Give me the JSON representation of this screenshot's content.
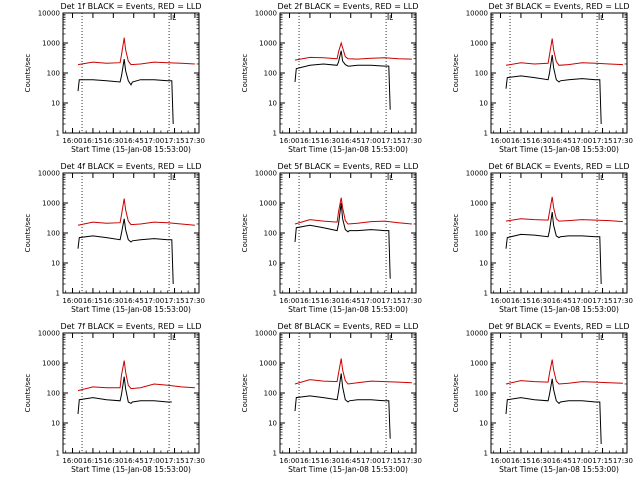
{
  "colors": {
    "events": "#000000",
    "lld": "#cc0000",
    "frame": "#000000"
  },
  "chart_data": [
    {
      "type": "line",
      "title": "Det 1f BLACK = Events, RED = LLD",
      "ylabel": "Counts/sec",
      "xlabel": "Start Time (15-Jan-08 15:53:00)",
      "x_ticks": [
        "16:00",
        "16:15",
        "16:30",
        "16:45",
        "17:00",
        "17:15",
        "17:30"
      ],
      "y_ticks": [
        "1",
        "10",
        "100",
        "1000",
        "10000"
      ],
      "y_scale": "log",
      "ylim": [
        1,
        10000
      ],
      "xlim": [
        "15:53",
        "17:33"
      ],
      "marker_label": "L",
      "dotted_lines_x": [
        "16:07",
        "17:11"
      ],
      "series": [
        {
          "name": "Events",
          "color": "#000000",
          "x": [
            "16:04",
            "16:05",
            "16:15",
            "16:25",
            "16:35",
            "16:36",
            "16:38",
            "16:39",
            "16:41",
            "16:43",
            "16:44",
            "16:50",
            "17:00",
            "17:10",
            "17:13",
            "17:14"
          ],
          "values": [
            25,
            60,
            60,
            55,
            50,
            80,
            290,
            120,
            55,
            40,
            50,
            60,
            60,
            55,
            55,
            2
          ]
        },
        {
          "name": "LLD",
          "color": "#cc0000",
          "x": [
            "16:04",
            "16:15",
            "16:25",
            "16:35",
            "16:36",
            "16:38",
            "16:39",
            "16:41",
            "16:43",
            "16:50",
            "17:00",
            "17:10",
            "17:20",
            "17:30"
          ],
          "values": [
            190,
            230,
            210,
            220,
            400,
            1500,
            600,
            250,
            190,
            200,
            230,
            220,
            210,
            200
          ]
        }
      ]
    },
    {
      "type": "line",
      "title": "Det 2f BLACK = Events, RED = LLD",
      "ylabel": "Counts/sec",
      "xlabel": "Start Time (15-Jan-08 15:53:00)",
      "x_ticks": [
        "16:00",
        "16:15",
        "16:30",
        "16:45",
        "17:00",
        "17:15",
        "17:30"
      ],
      "y_ticks": [
        "1",
        "10",
        "100",
        "1000",
        "10000"
      ],
      "y_scale": "log",
      "ylim": [
        1,
        10000
      ],
      "xlim": [
        "15:53",
        "17:33"
      ],
      "marker_label": "L",
      "dotted_lines_x": [
        "16:07",
        "17:11"
      ],
      "series": [
        {
          "name": "Events",
          "color": "#000000",
          "x": [
            "16:04",
            "16:05",
            "16:15",
            "16:25",
            "16:35",
            "16:36",
            "16:38",
            "16:39",
            "16:41",
            "16:43",
            "16:44",
            "16:50",
            "17:00",
            "17:10",
            "17:13",
            "17:14"
          ],
          "values": [
            50,
            140,
            180,
            200,
            180,
            230,
            550,
            250,
            190,
            170,
            170,
            180,
            180,
            170,
            170,
            6
          ]
        },
        {
          "name": "LLD",
          "color": "#cc0000",
          "x": [
            "16:04",
            "16:15",
            "16:25",
            "16:35",
            "16:36",
            "16:38",
            "16:39",
            "16:41",
            "16:43",
            "16:50",
            "17:00",
            "17:10",
            "17:20",
            "17:30"
          ],
          "values": [
            270,
            330,
            320,
            300,
            500,
            1000,
            700,
            350,
            300,
            290,
            310,
            320,
            300,
            290
          ]
        }
      ]
    },
    {
      "type": "line",
      "title": "Det 3f BLACK = Events, RED = LLD",
      "ylabel": "Counts/sec",
      "xlabel": "Start Time (15-Jan-08 15:53:00)",
      "x_ticks": [
        "16:00",
        "16:15",
        "16:30",
        "16:45",
        "17:00",
        "17:15",
        "17:30"
      ],
      "y_ticks": [
        "1",
        "10",
        "100",
        "1000",
        "10000"
      ],
      "y_scale": "log",
      "ylim": [
        1,
        10000
      ],
      "xlim": [
        "15:53",
        "17:33"
      ],
      "marker_label": "L",
      "dotted_lines_x": [
        "16:07",
        "17:11"
      ],
      "series": [
        {
          "name": "Events",
          "color": "#000000",
          "x": [
            "16:04",
            "16:05",
            "16:15",
            "16:25",
            "16:35",
            "16:36",
            "16:38",
            "16:39",
            "16:41",
            "16:43",
            "16:44",
            "16:50",
            "17:00",
            "17:10",
            "17:13",
            "17:14"
          ],
          "values": [
            30,
            70,
            80,
            70,
            60,
            100,
            400,
            150,
            60,
            50,
            55,
            60,
            65,
            60,
            60,
            2
          ]
        },
        {
          "name": "LLD",
          "color": "#cc0000",
          "x": [
            "16:04",
            "16:15",
            "16:25",
            "16:35",
            "16:36",
            "16:38",
            "16:39",
            "16:41",
            "16:43",
            "16:50",
            "17:00",
            "17:10",
            "17:20",
            "17:30"
          ],
          "values": [
            180,
            220,
            200,
            210,
            400,
            1400,
            600,
            240,
            180,
            190,
            220,
            210,
            200,
            190
          ]
        }
      ]
    },
    {
      "type": "line",
      "title": "Det 4f BLACK = Events, RED = LLD",
      "ylabel": "Counts/sec",
      "xlabel": "Start Time (15-Jan-08 15:53:00)",
      "x_ticks": [
        "16:00",
        "16:15",
        "16:30",
        "16:45",
        "17:00",
        "17:15",
        "17:30"
      ],
      "y_ticks": [
        "1",
        "10",
        "100",
        "1000",
        "10000"
      ],
      "y_scale": "log",
      "ylim": [
        1,
        10000
      ],
      "xlim": [
        "15:53",
        "17:33"
      ],
      "marker_label": "L",
      "dotted_lines_x": [
        "16:07",
        "17:11"
      ],
      "series": [
        {
          "name": "Events",
          "color": "#000000",
          "x": [
            "16:04",
            "16:05",
            "16:15",
            "16:25",
            "16:35",
            "16:36",
            "16:38",
            "16:39",
            "16:41",
            "16:43",
            "16:44",
            "16:50",
            "17:00",
            "17:10",
            "17:13",
            "17:14"
          ],
          "values": [
            30,
            70,
            80,
            70,
            60,
            100,
            300,
            130,
            60,
            50,
            55,
            60,
            65,
            60,
            60,
            2
          ]
        },
        {
          "name": "LLD",
          "color": "#cc0000",
          "x": [
            "16:04",
            "16:15",
            "16:25",
            "16:35",
            "16:36",
            "16:38",
            "16:39",
            "16:41",
            "16:43",
            "16:50",
            "17:00",
            "17:10",
            "17:20",
            "17:30"
          ],
          "values": [
            180,
            230,
            210,
            220,
            400,
            1400,
            600,
            250,
            190,
            200,
            230,
            220,
            200,
            180
          ]
        }
      ]
    },
    {
      "type": "line",
      "title": "Det 5f BLACK = Events, RED = LLD",
      "ylabel": "Counts/sec",
      "xlabel": "Start Time (15-Jan-08 15:53:00)",
      "x_ticks": [
        "16:00",
        "16:15",
        "16:30",
        "16:45",
        "17:00",
        "17:15",
        "17:30"
      ],
      "y_ticks": [
        "1",
        "10",
        "100",
        "1000",
        "10000"
      ],
      "y_scale": "log",
      "ylim": [
        1,
        10000
      ],
      "xlim": [
        "15:53",
        "17:33"
      ],
      "marker_label": "L",
      "dotted_lines_x": [
        "16:07",
        "17:11"
      ],
      "series": [
        {
          "name": "Events",
          "color": "#000000",
          "x": [
            "16:04",
            "16:05",
            "16:15",
            "16:25",
            "16:35",
            "16:36",
            "16:38",
            "16:39",
            "16:41",
            "16:43",
            "16:44",
            "16:50",
            "17:00",
            "17:10",
            "17:13",
            "17:14"
          ],
          "values": [
            50,
            150,
            180,
            150,
            120,
            200,
            1000,
            300,
            130,
            110,
            120,
            120,
            130,
            120,
            120,
            3
          ]
        },
        {
          "name": "LLD",
          "color": "#cc0000",
          "x": [
            "16:04",
            "16:15",
            "16:25",
            "16:35",
            "16:36",
            "16:38",
            "16:39",
            "16:41",
            "16:43",
            "16:50",
            "17:00",
            "17:10",
            "17:20",
            "17:30"
          ],
          "values": [
            200,
            280,
            250,
            230,
            500,
            1500,
            700,
            260,
            200,
            210,
            240,
            250,
            220,
            200
          ]
        }
      ]
    },
    {
      "type": "line",
      "title": "Det 6f BLACK = Events, RED = LLD",
      "ylabel": "Counts/sec",
      "xlabel": "Start Time (15-Jan-08 15:53:00)",
      "x_ticks": [
        "16:00",
        "16:15",
        "16:30",
        "16:45",
        "17:00",
        "17:15",
        "17:30"
      ],
      "y_ticks": [
        "1",
        "10",
        "100",
        "1000",
        "10000"
      ],
      "y_scale": "log",
      "ylim": [
        1,
        10000
      ],
      "xlim": [
        "15:53",
        "17:33"
      ],
      "marker_label": "L",
      "dotted_lines_x": [
        "16:07",
        "17:11"
      ],
      "series": [
        {
          "name": "Events",
          "color": "#000000",
          "x": [
            "16:04",
            "16:05",
            "16:15",
            "16:25",
            "16:35",
            "16:36",
            "16:38",
            "16:39",
            "16:41",
            "16:43",
            "16:44",
            "16:50",
            "17:00",
            "17:10",
            "17:13",
            "17:14"
          ],
          "values": [
            30,
            70,
            90,
            85,
            75,
            120,
            500,
            180,
            80,
            70,
            75,
            80,
            80,
            75,
            75,
            2
          ]
        },
        {
          "name": "LLD",
          "color": "#cc0000",
          "x": [
            "16:04",
            "16:15",
            "16:25",
            "16:35",
            "16:36",
            "16:38",
            "16:39",
            "16:41",
            "16:43",
            "16:50",
            "17:00",
            "17:10",
            "17:20",
            "17:30"
          ],
          "values": [
            250,
            300,
            280,
            270,
            500,
            1600,
            700,
            300,
            250,
            260,
            280,
            270,
            260,
            240
          ]
        }
      ]
    },
    {
      "type": "line",
      "title": "Det 7f BLACK = Events, RED = LLD",
      "ylabel": "Counts/sec",
      "xlabel": "Start Time (15-Jan-08 15:53:00)",
      "x_ticks": [
        "16:00",
        "16:15",
        "16:30",
        "16:45",
        "17:00",
        "17:15",
        "17:30"
      ],
      "y_ticks": [
        "1",
        "10",
        "100",
        "1000",
        "10000"
      ],
      "y_scale": "log",
      "ylim": [
        1,
        10000
      ],
      "xlim": [
        "15:53",
        "17:33"
      ],
      "marker_label": "L",
      "dotted_lines_x": [
        "16:07",
        "17:11"
      ],
      "series": [
        {
          "name": "Events",
          "color": "#000000",
          "x": [
            "16:04",
            "16:05",
            "16:15",
            "16:25",
            "16:35",
            "16:36",
            "16:38",
            "16:39",
            "16:41",
            "16:43",
            "16:44",
            "16:50",
            "17:00",
            "17:10",
            "17:13"
          ],
          "values": [
            20,
            60,
            70,
            60,
            55,
            90,
            350,
            140,
            50,
            45,
            50,
            55,
            55,
            50,
            50
          ]
        },
        {
          "name": "LLD",
          "color": "#cc0000",
          "x": [
            "16:04",
            "16:15",
            "16:25",
            "16:35",
            "16:36",
            "16:38",
            "16:39",
            "16:41",
            "16:43",
            "16:50",
            "17:00",
            "17:10",
            "17:20",
            "17:30"
          ],
          "values": [
            120,
            160,
            150,
            150,
            400,
            1200,
            500,
            180,
            140,
            150,
            200,
            180,
            160,
            150
          ]
        }
      ]
    },
    {
      "type": "line",
      "title": "Det 8f BLACK = Events, RED = LLD",
      "ylabel": "Counts/sec",
      "xlabel": "Start Time (15-Jan-08 15:53:00)",
      "x_ticks": [
        "16:00",
        "16:15",
        "16:30",
        "16:45",
        "17:00",
        "17:15",
        "17:30"
      ],
      "y_ticks": [
        "1",
        "10",
        "100",
        "1000",
        "10000"
      ],
      "y_scale": "log",
      "ylim": [
        1,
        10000
      ],
      "xlim": [
        "15:53",
        "17:33"
      ],
      "marker_label": "L",
      "dotted_lines_x": [
        "16:07",
        "17:11"
      ],
      "series": [
        {
          "name": "Events",
          "color": "#000000",
          "x": [
            "16:04",
            "16:05",
            "16:15",
            "16:25",
            "16:35",
            "16:36",
            "16:38",
            "16:39",
            "16:41",
            "16:43",
            "16:44",
            "16:50",
            "17:00",
            "17:10",
            "17:13",
            "17:14"
          ],
          "values": [
            25,
            70,
            80,
            70,
            60,
            110,
            450,
            160,
            60,
            50,
            55,
            60,
            60,
            55,
            55,
            3
          ]
        },
        {
          "name": "LLD",
          "color": "#cc0000",
          "x": [
            "16:04",
            "16:15",
            "16:25",
            "16:35",
            "16:36",
            "16:38",
            "16:39",
            "16:41",
            "16:43",
            "16:50",
            "17:00",
            "17:10",
            "17:20",
            "17:30"
          ],
          "values": [
            200,
            280,
            250,
            240,
            450,
            1400,
            600,
            260,
            200,
            220,
            250,
            240,
            230,
            220
          ]
        }
      ]
    },
    {
      "type": "line",
      "title": "Det 9f BLACK = Events, RED = LLD",
      "ylabel": "Counts/sec",
      "xlabel": "Start Time (15-Jan-08 15:53:00)",
      "x_ticks": [
        "16:00",
        "16:15",
        "16:30",
        "16:45",
        "17:00",
        "17:15",
        "17:30"
      ],
      "y_ticks": [
        "1",
        "10",
        "100",
        "1000",
        "10000"
      ],
      "y_scale": "log",
      "ylim": [
        1,
        10000
      ],
      "xlim": [
        "15:53",
        "17:33"
      ],
      "marker_label": "L",
      "dotted_lines_x": [
        "16:07",
        "17:11"
      ],
      "series": [
        {
          "name": "Events",
          "color": "#000000",
          "x": [
            "16:04",
            "16:05",
            "16:15",
            "16:25",
            "16:35",
            "16:36",
            "16:38",
            "16:39",
            "16:41",
            "16:43",
            "16:44",
            "16:50",
            "17:00",
            "17:10",
            "17:13",
            "17:14"
          ],
          "values": [
            20,
            60,
            70,
            60,
            55,
            90,
            300,
            130,
            55,
            45,
            50,
            55,
            55,
            50,
            50,
            2
          ]
        },
        {
          "name": "LLD",
          "color": "#cc0000",
          "x": [
            "16:04",
            "16:15",
            "16:25",
            "16:35",
            "16:36",
            "16:38",
            "16:39",
            "16:41",
            "16:43",
            "16:50",
            "17:00",
            "17:10",
            "17:20",
            "17:30"
          ],
          "values": [
            200,
            260,
            240,
            230,
            450,
            1300,
            600,
            250,
            200,
            210,
            240,
            230,
            220,
            210
          ]
        }
      ]
    }
  ]
}
